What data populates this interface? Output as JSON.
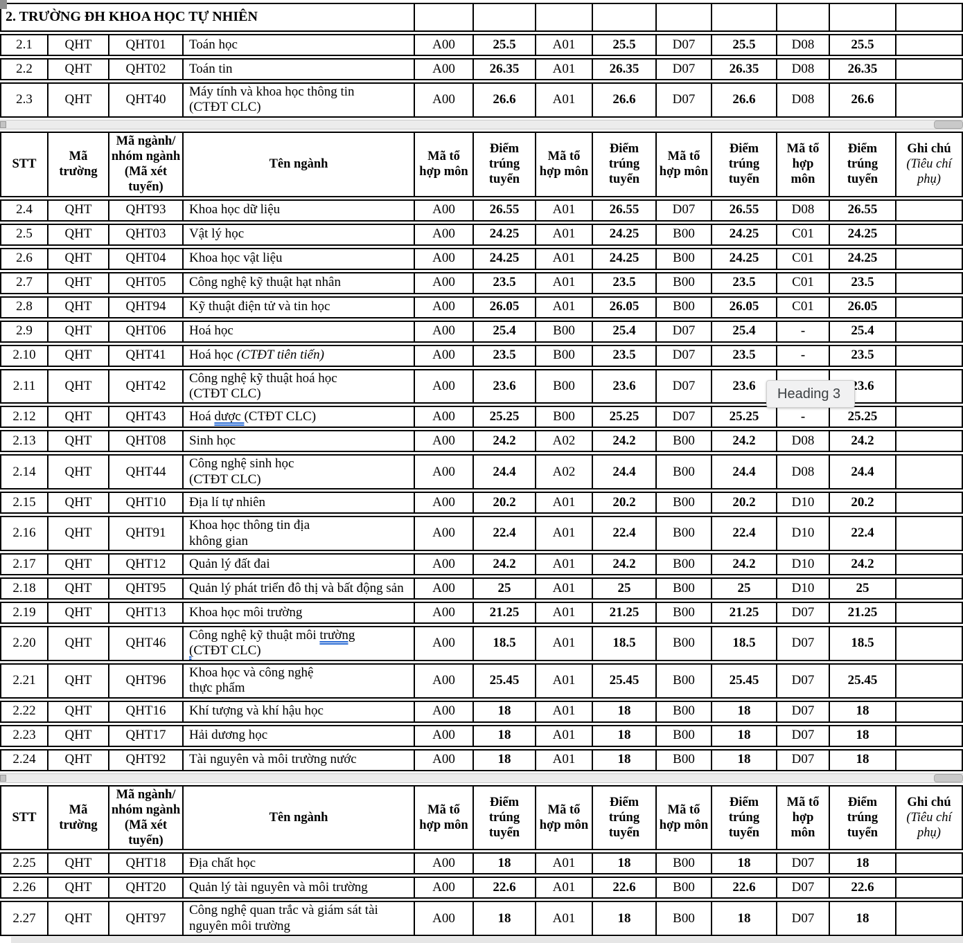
{
  "tooltip": {
    "label": "Heading 3"
  },
  "colors": {
    "table_border": "#000000",
    "spellcheck_underline": "#2b6cd4",
    "tooltip_bg": "#f1f1f2",
    "separator_bg": "#ececec"
  },
  "table": {
    "section_title": "2. TRƯỜNG ĐH KHOA HỌC TỰ NHIÊN",
    "headers": {
      "stt": "STT",
      "ma_truong": "Mã\ntrường",
      "ma_nganh": "Mã ngành/\nnhóm ngành\n(Mã xét\ntuyển)",
      "ten_nganh": "Tên ngành",
      "ma_to_hop": "Mã tổ\nhợp môn",
      "diem": "Điểm\ntrúng\ntuyển",
      "ghi_chu": "Ghi chú",
      "ghi_chu_sub": "(Tiêu chí\nphụ)"
    },
    "sections": [
      {
        "id": "s1",
        "rows": [
          {
            "stt": "2.1",
            "truong": "QHT",
            "code": "QHT01",
            "name": [
              {
                "t": "Toán học"
              }
            ],
            "combos": [
              [
                "A00",
                "25.5"
              ],
              [
                "A01",
                "25.5"
              ],
              [
                "D07",
                "25.5"
              ],
              [
                "D08",
                "25.5"
              ]
            ]
          },
          {
            "stt": "2.2",
            "truong": "QHT",
            "code": "QHT02",
            "name": [
              {
                "t": "Toán tin"
              }
            ],
            "combos": [
              [
                "A00",
                "26.35"
              ],
              [
                "A01",
                "26.35"
              ],
              [
                "D07",
                "26.35"
              ],
              [
                "D08",
                "26.35"
              ]
            ]
          },
          {
            "stt": "2.3",
            "truong": "QHT",
            "code": "QHT40",
            "name": [
              {
                "t": "Máy tính và khoa học thông tin"
              },
              {
                "br": true
              },
              {
                "t": "(CTĐT CLC)"
              }
            ],
            "combos": [
              [
                "A00",
                "26.6"
              ],
              [
                "A01",
                "26.6"
              ],
              [
                "D07",
                "26.6"
              ],
              [
                "D08",
                "26.6"
              ]
            ]
          }
        ]
      },
      {
        "id": "s2",
        "rows": [
          {
            "stt": "2.4",
            "truong": "QHT",
            "code": "QHT93",
            "name": [
              {
                "t": "Khoa học dữ liệu"
              }
            ],
            "combos": [
              [
                "A00",
                "26.55"
              ],
              [
                "A01",
                "26.55"
              ],
              [
                "D07",
                "26.55"
              ],
              [
                "D08",
                "26.55"
              ]
            ]
          },
          {
            "stt": "2.5",
            "truong": "QHT",
            "code": "QHT03",
            "name": [
              {
                "t": "Vật lý học"
              }
            ],
            "combos": [
              [
                "A00",
                "24.25"
              ],
              [
                "A01",
                "24.25"
              ],
              [
                "B00",
                "24.25"
              ],
              [
                "C01",
                "24.25"
              ]
            ]
          },
          {
            "stt": "2.6",
            "truong": "QHT",
            "code": "QHT04",
            "name": [
              {
                "t": "Khoa học vật liệu"
              }
            ],
            "combos": [
              [
                "A00",
                "24.25"
              ],
              [
                "A01",
                "24.25"
              ],
              [
                "B00",
                "24.25"
              ],
              [
                "C01",
                "24.25"
              ]
            ]
          },
          {
            "stt": "2.7",
            "truong": "QHT",
            "code": "QHT05",
            "name": [
              {
                "t": "Công nghệ kỹ thuật hạt nhân"
              }
            ],
            "combos": [
              [
                "A00",
                "23.5"
              ],
              [
                "A01",
                "23.5"
              ],
              [
                "B00",
                "23.5"
              ],
              [
                "C01",
                "23.5"
              ]
            ]
          },
          {
            "stt": "2.8",
            "truong": "QHT",
            "code": "QHT94",
            "name": [
              {
                "t": "Kỹ thuật điện tử và tin học"
              }
            ],
            "combos": [
              [
                "A00",
                "26.05"
              ],
              [
                "A01",
                "26.05"
              ],
              [
                "B00",
                "26.05"
              ],
              [
                "C01",
                "26.05"
              ]
            ]
          },
          {
            "stt": "2.9",
            "truong": "QHT",
            "code": "QHT06",
            "name": [
              {
                "t": "Hoá học"
              }
            ],
            "combos": [
              [
                "A00",
                "25.4"
              ],
              [
                "B00",
                "25.4"
              ],
              [
                "D07",
                "25.4"
              ],
              [
                "-",
                "25.4"
              ]
            ]
          },
          {
            "stt": "2.10",
            "truong": "QHT",
            "code": "QHT41",
            "name": [
              {
                "t": "Hoá học "
              },
              {
                "t": "(CTĐT tiên tiến)",
                "i": true
              }
            ],
            "combos": [
              [
                "A00",
                "23.5"
              ],
              [
                "B00",
                "23.5"
              ],
              [
                "D07",
                "23.5"
              ],
              [
                "-",
                "23.5"
              ]
            ]
          },
          {
            "stt": "2.11",
            "truong": "QHT",
            "code": "QHT42",
            "name": [
              {
                "t": "Công nghệ kỹ thuật hoá học"
              },
              {
                "br": true
              },
              {
                "t": "(CTĐT CLC)"
              }
            ],
            "combos": [
              [
                "A00",
                "23.6"
              ],
              [
                "B00",
                "23.6"
              ],
              [
                "D07",
                "23.6"
              ],
              [
                "-",
                "23.6"
              ]
            ]
          },
          {
            "stt": "2.12",
            "truong": "QHT",
            "code": "QHT43",
            "name": [
              {
                "t": "Hoá "
              },
              {
                "t": "dược ",
                "u": true
              },
              {
                "t": " (CTĐT CLC)"
              }
            ],
            "combos": [
              [
                "A00",
                "25.25"
              ],
              [
                "B00",
                "25.25"
              ],
              [
                "D07",
                "25.25"
              ],
              [
                "-",
                "25.25"
              ]
            ]
          },
          {
            "stt": "2.13",
            "truong": "QHT",
            "code": "QHT08",
            "name": [
              {
                "t": "Sinh học"
              }
            ],
            "combos": [
              [
                "A00",
                "24.2"
              ],
              [
                "A02",
                "24.2"
              ],
              [
                "B00",
                "24.2"
              ],
              [
                "D08",
                "24.2"
              ]
            ]
          },
          {
            "stt": "2.14",
            "truong": "QHT",
            "code": "QHT44",
            "name": [
              {
                "t": "Công nghệ sinh học"
              },
              {
                "br": true
              },
              {
                "t": "(CTĐT CLC)"
              }
            ],
            "combos": [
              [
                "A00",
                "24.4"
              ],
              [
                "A02",
                "24.4"
              ],
              [
                "B00",
                "24.4"
              ],
              [
                "D08",
                "24.4"
              ]
            ]
          },
          {
            "stt": "2.15",
            "truong": "QHT",
            "code": "QHT10",
            "name": [
              {
                "t": "Địa lí tự nhiên"
              }
            ],
            "combos": [
              [
                "A00",
                "20.2"
              ],
              [
                "A01",
                "20.2"
              ],
              [
                "B00",
                "20.2"
              ],
              [
                "D10",
                "20.2"
              ]
            ]
          },
          {
            "stt": "2.16",
            "truong": "QHT",
            "code": "QHT91",
            "name": [
              {
                "t": "Khoa học thông tin địa"
              },
              {
                "br": true
              },
              {
                "t": "không gian"
              }
            ],
            "combos": [
              [
                "A00",
                "22.4"
              ],
              [
                "A01",
                "22.4"
              ],
              [
                "B00",
                "22.4"
              ],
              [
                "D10",
                "22.4"
              ]
            ]
          },
          {
            "stt": "2.17",
            "truong": "QHT",
            "code": "QHT12",
            "name": [
              {
                "t": "Quản lý đất đai"
              }
            ],
            "combos": [
              [
                "A00",
                "24.2"
              ],
              [
                "A01",
                "24.2"
              ],
              [
                "B00",
                "24.2"
              ],
              [
                "D10",
                "24.2"
              ]
            ]
          },
          {
            "stt": "2.18",
            "truong": "QHT",
            "code": "QHT95",
            "name": [
              {
                "t": "Quản lý phát triển đô thị và bất động sản"
              }
            ],
            "combos": [
              [
                "A00",
                "25"
              ],
              [
                "A01",
                "25"
              ],
              [
                "B00",
                "25"
              ],
              [
                "D10",
                "25"
              ]
            ]
          },
          {
            "stt": "2.19",
            "truong": "QHT",
            "code": "QHT13",
            "name": [
              {
                "t": "Khoa học môi trường"
              }
            ],
            "combos": [
              [
                "A00",
                "21.25"
              ],
              [
                "A01",
                "21.25"
              ],
              [
                "B00",
                "21.25"
              ],
              [
                "D07",
                "21.25"
              ]
            ]
          },
          {
            "stt": "2.20",
            "truong": "QHT",
            "code": "QHT46",
            "name": [
              {
                "t": "Công nghệ kỹ thuật môi "
              },
              {
                "t": "trường",
                "u": true
              },
              {
                "br": true
              },
              {
                "t": "(",
                "u": true
              },
              {
                "t": "CTĐT CLC)"
              }
            ],
            "combos": [
              [
                "A00",
                "18.5"
              ],
              [
                "A01",
                "18.5"
              ],
              [
                "B00",
                "18.5"
              ],
              [
                "D07",
                "18.5"
              ]
            ]
          },
          {
            "stt": "2.21",
            "truong": "QHT",
            "code": "QHT96",
            "name": [
              {
                "t": "Khoa học và công nghệ"
              },
              {
                "br": true
              },
              {
                "t": "thực phẩm"
              }
            ],
            "combos": [
              [
                "A00",
                "25.45"
              ],
              [
                "A01",
                "25.45"
              ],
              [
                "B00",
                "25.45"
              ],
              [
                "D07",
                "25.45"
              ]
            ]
          },
          {
            "stt": "2.22",
            "truong": "QHT",
            "code": "QHT16",
            "name": [
              {
                "t": "Khí tượng và khí hậu học"
              }
            ],
            "combos": [
              [
                "A00",
                "18"
              ],
              [
                "A01",
                "18"
              ],
              [
                "B00",
                "18"
              ],
              [
                "D07",
                "18"
              ]
            ]
          },
          {
            "stt": "2.23",
            "truong": "QHT",
            "code": "QHT17",
            "name": [
              {
                "t": "Hải dương học"
              }
            ],
            "combos": [
              [
                "A00",
                "18"
              ],
              [
                "A01",
                "18"
              ],
              [
                "B00",
                "18"
              ],
              [
                "D07",
                "18"
              ]
            ]
          },
          {
            "stt": "2.24",
            "truong": "QHT",
            "code": "QHT92",
            "name": [
              {
                "t": "Tài nguyên và môi trường nước"
              }
            ],
            "combos": [
              [
                "A00",
                "18"
              ],
              [
                "A01",
                "18"
              ],
              [
                "B00",
                "18"
              ],
              [
                "D07",
                "18"
              ]
            ]
          }
        ]
      },
      {
        "id": "s3",
        "rows": [
          {
            "stt": "2.25",
            "truong": "QHT",
            "code": "QHT18",
            "name": [
              {
                "t": "Địa chất học"
              }
            ],
            "combos": [
              [
                "A00",
                "18"
              ],
              [
                "A01",
                "18"
              ],
              [
                "B00",
                "18"
              ],
              [
                "D07",
                "18"
              ]
            ]
          },
          {
            "stt": "2.26",
            "truong": "QHT",
            "code": "QHT20",
            "name": [
              {
                "t": "Quản lý tài nguyên và môi trường"
              }
            ],
            "combos": [
              [
                "A00",
                "22.6"
              ],
              [
                "A01",
                "22.6"
              ],
              [
                "B00",
                "22.6"
              ],
              [
                "D07",
                "22.6"
              ]
            ]
          },
          {
            "stt": "2.27",
            "truong": "QHT",
            "code": "QHT97",
            "name": [
              {
                "t": "Công nghệ quan trắc và giám sát tài nguyên môi trường"
              }
            ],
            "combos": [
              [
                "A00",
                "18"
              ],
              [
                "A01",
                "18"
              ],
              [
                "B00",
                "18"
              ],
              [
                "D07",
                "18"
              ]
            ]
          }
        ]
      }
    ]
  }
}
